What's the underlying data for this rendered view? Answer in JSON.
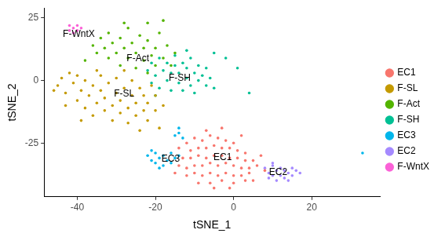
{
  "chart_data": {
    "type": "scatter",
    "x_label": "tSNE_1",
    "y_label": "tSNE_2",
    "xlim": [
      -48.5,
      37.5
    ],
    "ylim": [
      -46.5,
      29
    ],
    "xticks": [
      -40,
      -20,
      0,
      20
    ],
    "yticks": [
      -25,
      0,
      25
    ],
    "grid": false,
    "legend": "right",
    "marker": "circle",
    "series": [
      {
        "name": "EC1",
        "color": "#F8766D",
        "points": [
          [
            -12,
            -25
          ],
          [
            -10,
            -23
          ],
          [
            -8,
            -24
          ],
          [
            -6,
            -22
          ],
          [
            -4,
            -23
          ],
          [
            -2,
            -24
          ],
          [
            0,
            -25
          ],
          [
            -11,
            -28
          ],
          [
            -9,
            -27
          ],
          [
            -7,
            -27
          ],
          [
            -5,
            -26
          ],
          [
            -3,
            -27
          ],
          [
            -1,
            -27
          ],
          [
            1,
            -28
          ],
          [
            3,
            -29
          ],
          [
            -13,
            -31
          ],
          [
            -11,
            -31
          ],
          [
            -9,
            -30
          ],
          [
            -7,
            -31
          ],
          [
            -5,
            -30
          ],
          [
            -3,
            -30
          ],
          [
            -1,
            -31
          ],
          [
            1,
            -31
          ],
          [
            3,
            -32
          ],
          [
            5,
            -32
          ],
          [
            -14,
            -34
          ],
          [
            -12,
            -35
          ],
          [
            -10,
            -34
          ],
          [
            -8,
            -34
          ],
          [
            -6,
            -33
          ],
          [
            -4,
            -34
          ],
          [
            -2,
            -33
          ],
          [
            0,
            -34
          ],
          [
            2,
            -35
          ],
          [
            4,
            -35
          ],
          [
            6,
            -34
          ],
          [
            -12,
            -38
          ],
          [
            -10,
            -37
          ],
          [
            -8,
            -38
          ],
          [
            -6,
            -37
          ],
          [
            -4,
            -38
          ],
          [
            -2,
            -37
          ],
          [
            0,
            -38
          ],
          [
            2,
            -38
          ],
          [
            4,
            -37
          ],
          [
            -9,
            -41
          ],
          [
            -6,
            -41
          ],
          [
            -3,
            -40
          ],
          [
            0,
            -41
          ],
          [
            3,
            -40
          ],
          [
            -5,
            -43
          ],
          [
            -1,
            -43
          ],
          [
            -14,
            -27
          ],
          [
            -7,
            -20
          ],
          [
            -3,
            -19
          ],
          [
            7,
            -30
          ],
          [
            8,
            -36
          ],
          [
            5,
            -40
          ],
          [
            -15,
            -37
          ],
          [
            2,
            -22
          ]
        ]
      },
      {
        "name": "F-SL",
        "color": "#C49A00",
        "points": [
          [
            -45,
            -2
          ],
          [
            -44,
            1
          ],
          [
            -43,
            -5
          ],
          [
            -42,
            3
          ],
          [
            -41,
            -1
          ],
          [
            -40,
            -8
          ],
          [
            -40,
            2
          ],
          [
            -39,
            -4
          ],
          [
            -38,
            -11
          ],
          [
            -38,
            0
          ],
          [
            -37,
            -6
          ],
          [
            -36,
            -2
          ],
          [
            -36,
            -14
          ],
          [
            -35,
            -9
          ],
          [
            -34,
            -4
          ],
          [
            -34,
            2
          ],
          [
            -33,
            -12
          ],
          [
            -33,
            -7
          ],
          [
            -32,
            -1
          ],
          [
            -31,
            -16
          ],
          [
            -31,
            -10
          ],
          [
            -30,
            -5
          ],
          [
            -30,
            1
          ],
          [
            -29,
            -13
          ],
          [
            -29,
            -8
          ],
          [
            -28,
            -3
          ],
          [
            -27,
            -17
          ],
          [
            -27,
            -11
          ],
          [
            -26,
            -6
          ],
          [
            -26,
            0
          ],
          [
            -25,
            -14
          ],
          [
            -25,
            -9
          ],
          [
            -24,
            -3
          ],
          [
            -23,
            -12
          ],
          [
            -23,
            -6
          ],
          [
            -22,
            -16
          ],
          [
            -22,
            -9
          ],
          [
            -21,
            -2
          ],
          [
            -20,
            -12
          ],
          [
            -20,
            -6
          ],
          [
            -19,
            -19
          ],
          [
            -18,
            -10
          ],
          [
            -39,
            -16
          ],
          [
            -43,
            -10
          ],
          [
            -35,
            4
          ],
          [
            -28,
            4
          ],
          [
            -24,
            -20
          ],
          [
            -46,
            -4
          ]
        ]
      },
      {
        "name": "F-Act",
        "color": "#53B400",
        "points": [
          [
            -36,
            14
          ],
          [
            -35,
            11
          ],
          [
            -34,
            17
          ],
          [
            -33,
            13
          ],
          [
            -32,
            9
          ],
          [
            -32,
            19
          ],
          [
            -31,
            15
          ],
          [
            -30,
            11
          ],
          [
            -29,
            6
          ],
          [
            -29,
            17
          ],
          [
            -28,
            13
          ],
          [
            -27,
            9
          ],
          [
            -27,
            21
          ],
          [
            -26,
            15
          ],
          [
            -25,
            5
          ],
          [
            -25,
            11
          ],
          [
            -24,
            18
          ],
          [
            -23,
            8
          ],
          [
            -23,
            13
          ],
          [
            -22,
            3
          ],
          [
            -22,
            16
          ],
          [
            -21,
            10
          ],
          [
            -20,
            6
          ],
          [
            -20,
            13
          ],
          [
            -19,
            19
          ],
          [
            -18,
            9
          ],
          [
            -17,
            14
          ],
          [
            -16,
            6
          ],
          [
            -15,
            11
          ],
          [
            -28,
            23
          ],
          [
            -22,
            23
          ],
          [
            -38,
            8
          ],
          [
            -18,
            24
          ]
        ]
      },
      {
        "name": "F-SH",
        "color": "#00C094",
        "points": [
          [
            -22,
            4
          ],
          [
            -21,
            -1
          ],
          [
            -21,
            7
          ],
          [
            -20,
            2
          ],
          [
            -19,
            -3
          ],
          [
            -19,
            9
          ],
          [
            -18,
            4
          ],
          [
            -17,
            0
          ],
          [
            -17,
            7
          ],
          [
            -16,
            -4
          ],
          [
            -16,
            3
          ],
          [
            -15,
            10
          ],
          [
            -15,
            6
          ],
          [
            -14,
            -1
          ],
          [
            -14,
            3
          ],
          [
            -13,
            7
          ],
          [
            -13,
            -4
          ],
          [
            -12,
            1
          ],
          [
            -12,
            5
          ],
          [
            -11,
            -2
          ],
          [
            -11,
            9
          ],
          [
            -10,
            3
          ],
          [
            -10,
            -5
          ],
          [
            -9,
            6
          ],
          [
            -9,
            0
          ],
          [
            -8,
            2
          ],
          [
            -7,
            -2
          ],
          [
            -7,
            5
          ],
          [
            -6,
            1
          ],
          [
            -5,
            -3
          ],
          [
            -5,
            11
          ],
          [
            -20,
            -6
          ],
          [
            -12,
            12
          ],
          [
            1,
            5
          ],
          [
            4,
            -5
          ],
          [
            -2,
            9
          ]
        ]
      },
      {
        "name": "EC3",
        "color": "#00B6EB",
        "points": [
          [
            -22,
            -30
          ],
          [
            -21,
            -32
          ],
          [
            -20,
            -29
          ],
          [
            -20,
            -33
          ],
          [
            -19,
            -31
          ],
          [
            -18,
            -30
          ],
          [
            -18,
            -34
          ],
          [
            -17,
            -32
          ],
          [
            -16,
            -29
          ],
          [
            -16,
            -33
          ],
          [
            -15,
            -31
          ],
          [
            -14,
            -30
          ],
          [
            -19,
            -35
          ],
          [
            -21,
            -28
          ],
          [
            -15,
            -22
          ],
          [
            -14,
            -21
          ],
          [
            -13,
            -23
          ],
          [
            -14,
            -19
          ],
          [
            33,
            -29
          ]
        ]
      },
      {
        "name": "EC2",
        "color": "#A58AFF",
        "points": [
          [
            8,
            -35
          ],
          [
            9,
            -37
          ],
          [
            10,
            -34
          ],
          [
            10,
            -38
          ],
          [
            11,
            -36
          ],
          [
            12,
            -35
          ],
          [
            12,
            -38
          ],
          [
            13,
            -36
          ],
          [
            13,
            -39
          ],
          [
            14,
            -37
          ],
          [
            15,
            -35
          ],
          [
            15,
            -38
          ],
          [
            16,
            -36
          ],
          [
            11,
            -40
          ],
          [
            9,
            -39
          ],
          [
            14,
            -40
          ],
          [
            17,
            -37
          ],
          [
            10,
            -33
          ]
        ]
      },
      {
        "name": "F-WntX",
        "color": "#FB61D7",
        "points": [
          [
            -42,
            20
          ],
          [
            -41,
            21
          ],
          [
            -41,
            19
          ],
          [
            -40,
            22
          ],
          [
            -40,
            20
          ],
          [
            -39,
            21
          ],
          [
            -42,
            22
          ]
        ]
      }
    ],
    "annotations": [
      {
        "text": "F-WntX",
        "x": -39.6,
        "y": 18.4
      },
      {
        "text": "F-Act",
        "x": -24.5,
        "y": 8.9
      },
      {
        "text": "F-SH",
        "x": -13.8,
        "y": 1
      },
      {
        "text": "F-SL",
        "x": -28,
        "y": -5.4
      },
      {
        "text": "EC3",
        "x": -16.1,
        "y": -31.3
      },
      {
        "text": "EC1",
        "x": -2.8,
        "y": -30.7
      },
      {
        "text": "EC2",
        "x": 11.4,
        "y": -36.7
      }
    ]
  }
}
